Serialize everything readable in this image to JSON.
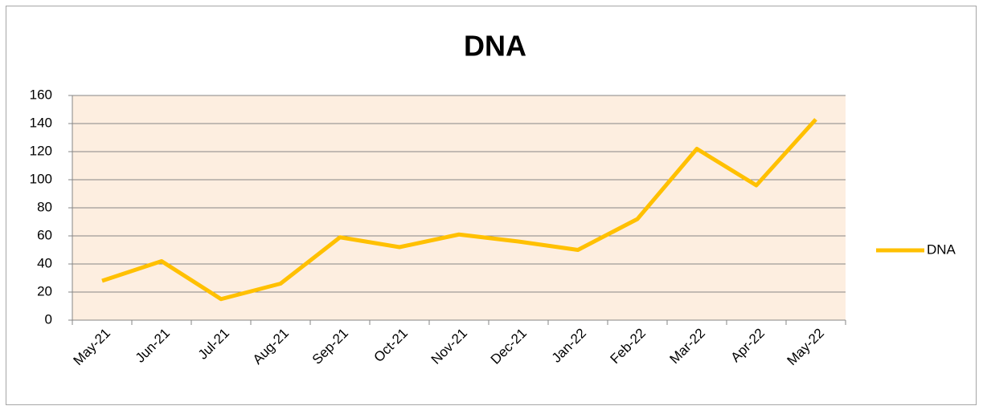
{
  "chart_data": {
    "type": "line",
    "title": "DNA",
    "categories": [
      "May-21",
      "Jun-21",
      "Jul-21",
      "Aug-21",
      "Sep-21",
      "Oct-21",
      "Nov-21",
      "Dec-21",
      "Jan-22",
      "Feb-22",
      "Mar-22",
      "Apr-22",
      "May-22"
    ],
    "series": [
      {
        "name": "DNA",
        "color": "#ffc000",
        "values": [
          28,
          42,
          15,
          26,
          59,
          52,
          61,
          56,
          50,
          72,
          122,
          96,
          143
        ]
      }
    ],
    "ylim": [
      0,
      160
    ],
    "yticks": [
      0,
      20,
      40,
      60,
      80,
      100,
      120,
      140,
      160
    ],
    "grid": true,
    "legend": "right"
  }
}
